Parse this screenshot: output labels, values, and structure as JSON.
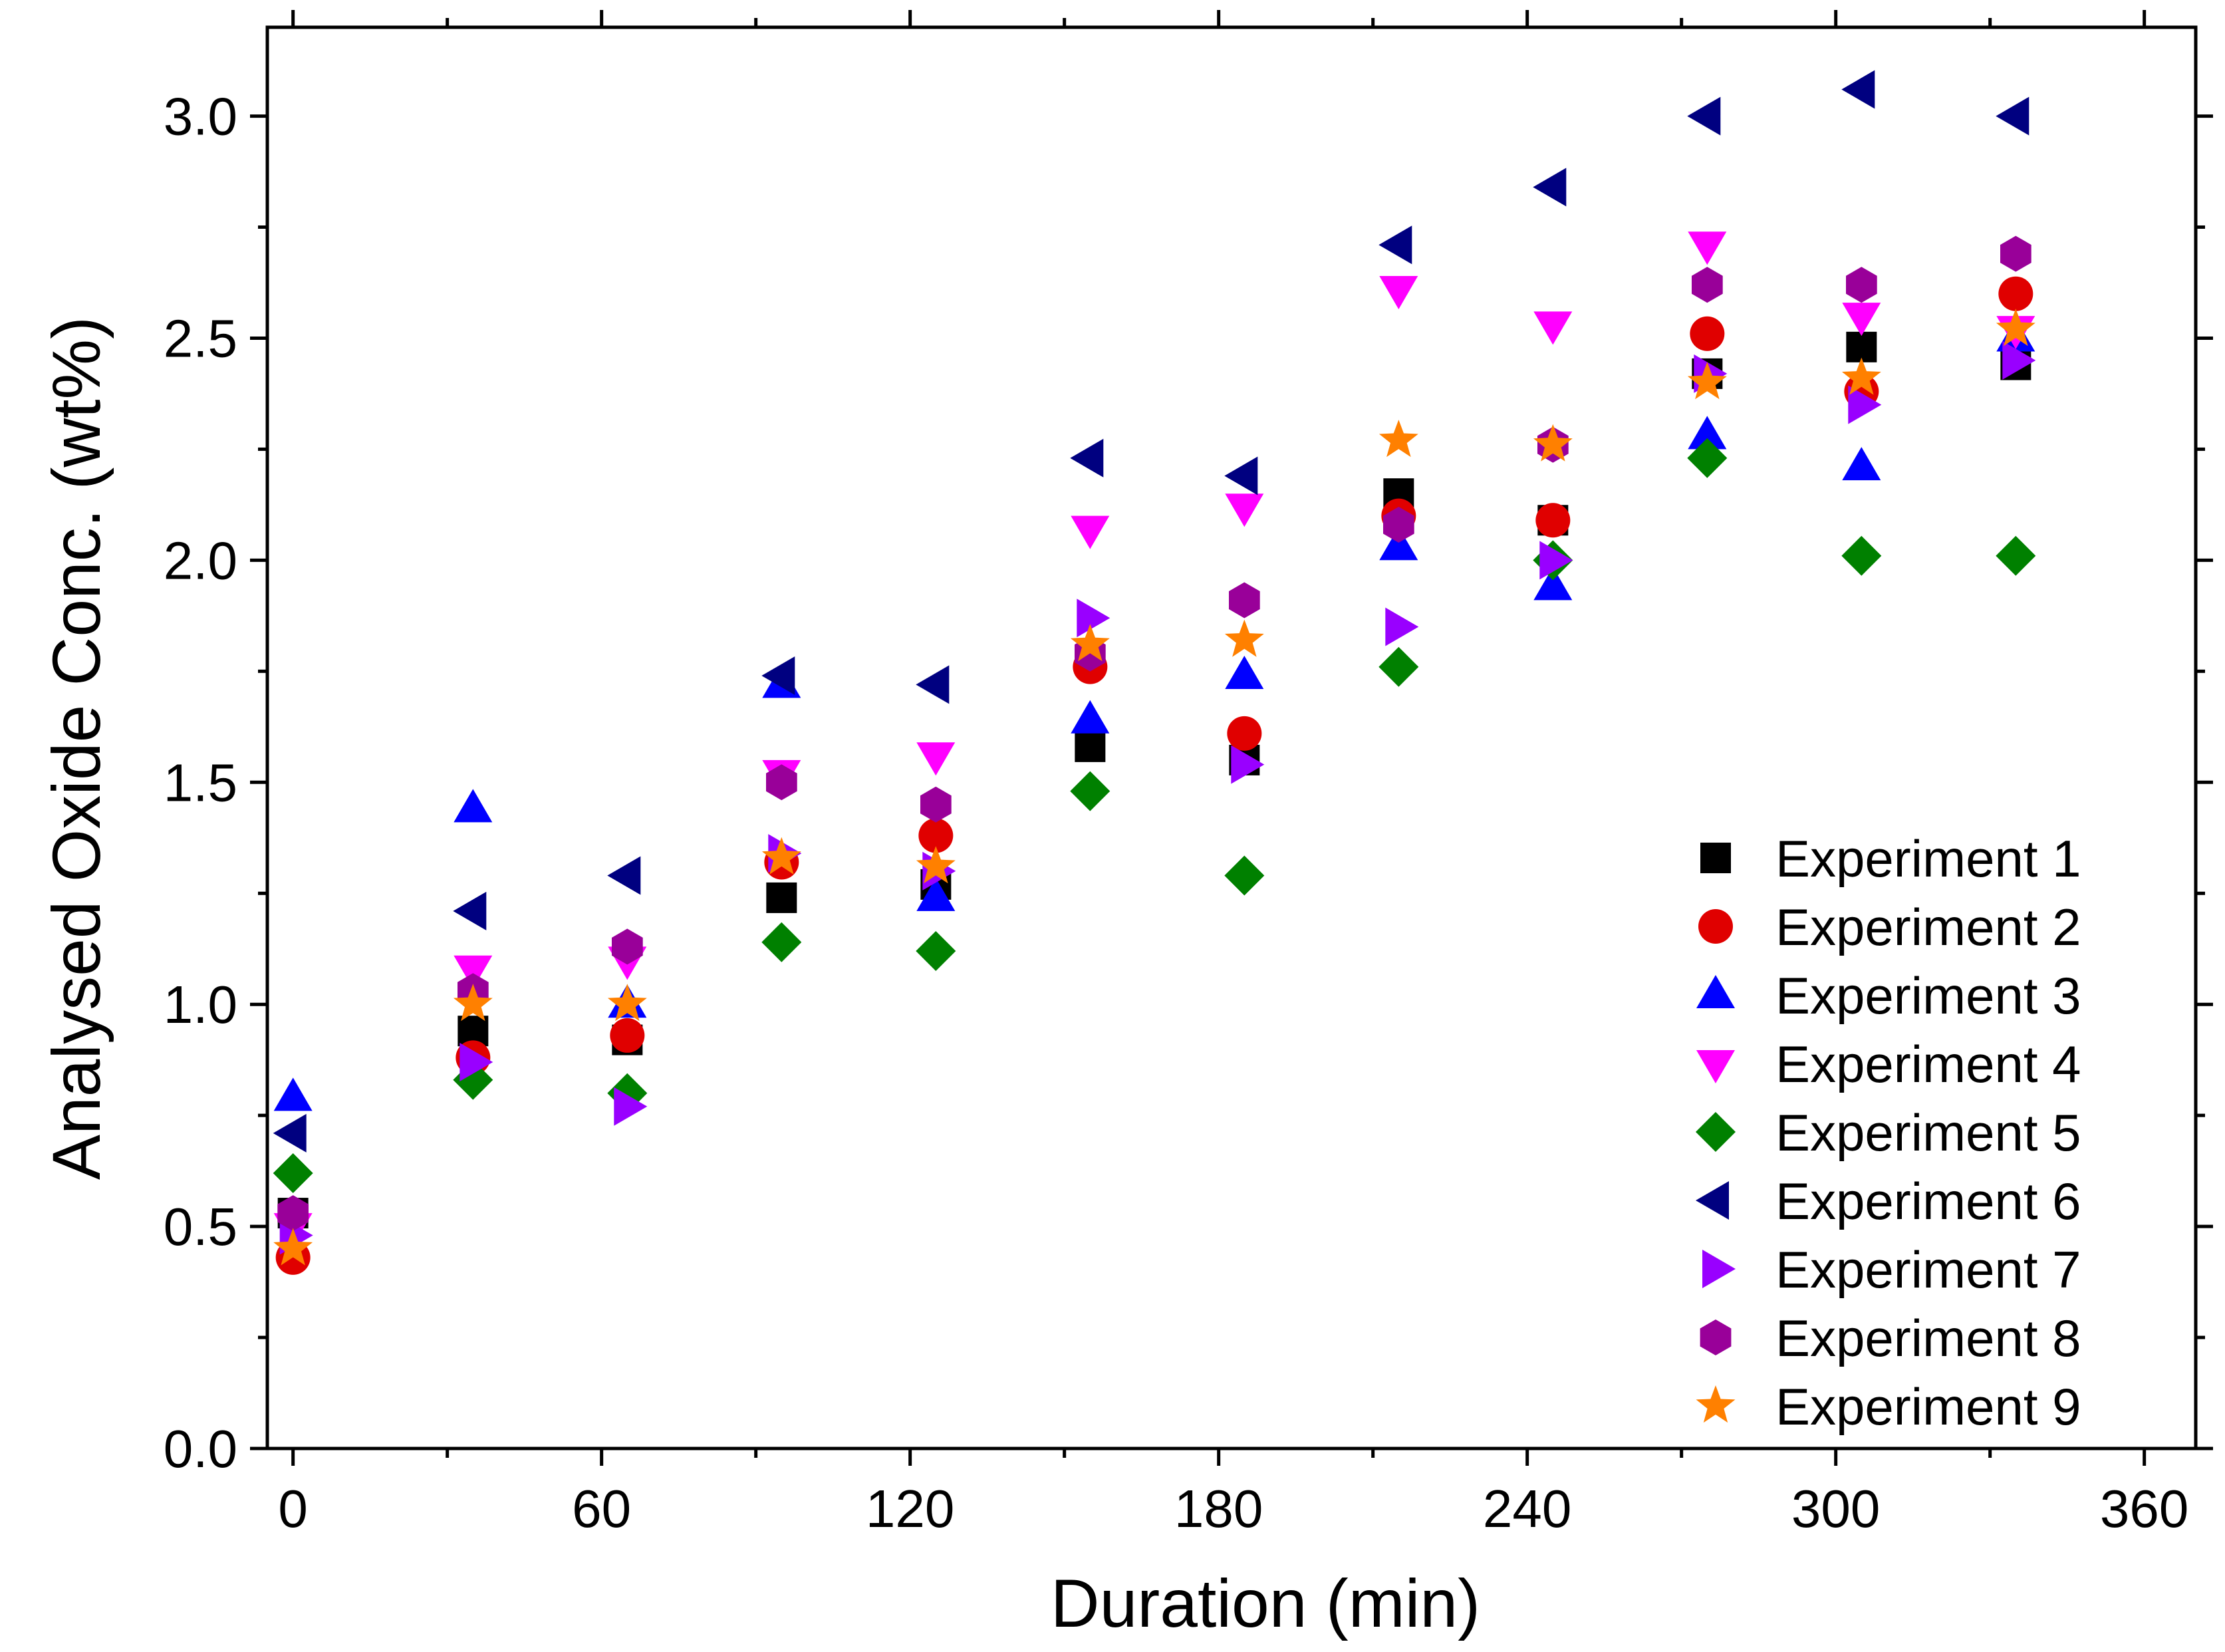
{
  "chart_data": {
    "type": "scatter",
    "title": "",
    "xlabel": "Duration (min)",
    "ylabel": "Analysed Oxide Conc. (wt%)",
    "xlim": [
      -5,
      370
    ],
    "ylim": [
      0,
      3.2
    ],
    "x_ticks": [
      0,
      60,
      120,
      180,
      240,
      300,
      360
    ],
    "x_tick_labels": [
      "0",
      "60",
      "120",
      "180",
      "240",
      "300",
      "360"
    ],
    "y_ticks": [
      0,
      0.5,
      1.0,
      1.5,
      2.0,
      2.5,
      3.0
    ],
    "y_tick_labels": [
      "0.0",
      "0.5",
      "1.0",
      "1.5",
      "2.0",
      "2.5",
      "3.0"
    ],
    "grid": false,
    "legend_position": "bottom-right",
    "x": [
      0,
      35,
      65,
      95,
      125,
      155,
      185,
      215,
      245,
      275,
      305,
      335
    ],
    "series": [
      {
        "name": "Experiment 1",
        "marker": "square",
        "color": "#000000",
        "values": [
          0.53,
          0.94,
          0.92,
          1.24,
          1.27,
          1.58,
          1.55,
          2.15,
          2.09,
          2.42,
          2.48,
          2.44
        ]
      },
      {
        "name": "Experiment 2",
        "marker": "circle",
        "color": "#e00000",
        "values": [
          0.43,
          0.88,
          0.93,
          1.32,
          1.38,
          1.76,
          1.61,
          2.1,
          2.09,
          2.51,
          2.38,
          2.6
        ]
      },
      {
        "name": "Experiment 3",
        "marker": "triangle-up",
        "color": "#0000ff",
        "values": [
          0.79,
          1.44,
          1.0,
          1.72,
          1.24,
          1.64,
          1.74,
          2.03,
          1.94,
          2.28,
          2.21,
          2.5
        ]
      },
      {
        "name": "Experiment 4",
        "marker": "triangle-down",
        "color": "#ff00ff",
        "values": [
          0.5,
          1.08,
          1.1,
          1.52,
          1.56,
          2.07,
          2.12,
          2.61,
          2.53,
          2.71,
          2.55,
          2.52
        ]
      },
      {
        "name": "Experiment 5",
        "marker": "diamond",
        "color": "#008000",
        "values": [
          0.62,
          0.83,
          0.8,
          1.14,
          1.12,
          1.48,
          1.29,
          1.76,
          2.0,
          2.23,
          2.01,
          2.01
        ]
      },
      {
        "name": "Experiment 6",
        "marker": "triangle-left",
        "color": "#000080",
        "values": [
          0.71,
          1.21,
          1.29,
          1.74,
          1.72,
          2.23,
          2.19,
          2.71,
          2.84,
          3.0,
          3.06,
          3.0
        ]
      },
      {
        "name": "Experiment 7",
        "marker": "triangle-right",
        "color": "#9900ff",
        "values": [
          0.48,
          0.87,
          0.77,
          1.34,
          1.3,
          1.87,
          1.54,
          1.85,
          2.0,
          2.42,
          2.35,
          2.45
        ]
      },
      {
        "name": "Experiment 8",
        "marker": "hexagon",
        "color": "#990099",
        "values": [
          0.53,
          1.03,
          1.13,
          1.5,
          1.45,
          1.79,
          1.91,
          2.08,
          2.26,
          2.62,
          2.62,
          2.69
        ]
      },
      {
        "name": "Experiment 9",
        "marker": "star",
        "color": "#ff8000",
        "values": [
          0.45,
          1.0,
          1.0,
          1.33,
          1.31,
          1.81,
          1.82,
          2.27,
          2.26,
          2.4,
          2.41,
          2.52
        ]
      }
    ]
  }
}
